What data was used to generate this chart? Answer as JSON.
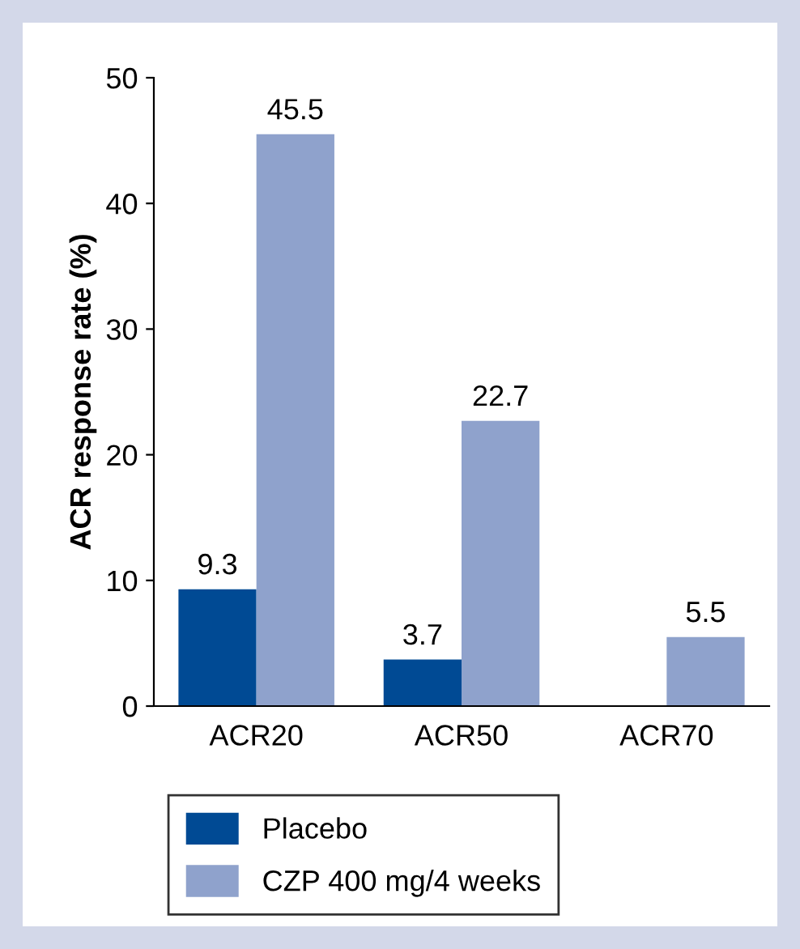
{
  "chart_data": {
    "type": "bar",
    "ylabel": "ACR response rate (%)",
    "categories": [
      "ACR20",
      "ACR50",
      "ACR70"
    ],
    "series": [
      {
        "name": "Placebo",
        "color": "#004a94",
        "values": [
          9.3,
          3.7,
          0
        ],
        "value_labels": [
          "9.3",
          "3.7",
          null
        ]
      },
      {
        "name": "CZP 400 mg/4 weeks",
        "color": "#8fa2cc",
        "values": [
          45.5,
          22.7,
          5.5
        ],
        "value_labels": [
          "45.5",
          "22.7",
          "5.5"
        ]
      }
    ],
    "ylim": [
      0,
      50
    ],
    "yticks": [
      0,
      10,
      20,
      30,
      40,
      50
    ],
    "grid": false,
    "legend": "bottom"
  }
}
